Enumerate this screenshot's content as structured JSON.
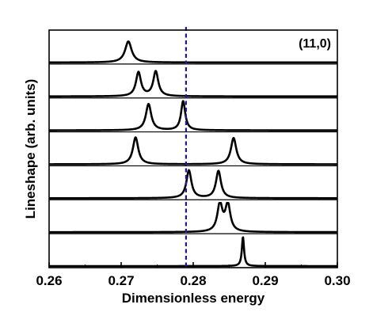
{
  "chart_data": {
    "type": "line",
    "title": "",
    "annotation": "(11,0)",
    "xlabel": "Dimensionless energy",
    "ylabel": "Lineshape (arb. units)",
    "xlim": [
      0.26,
      0.3
    ],
    "xticks": [
      "0.26",
      "0.27",
      "0.28",
      "0.29",
      "0.30"
    ],
    "grid": false,
    "reference_line": {
      "x": 0.279,
      "style": "dashed",
      "color": "#1a1aa6"
    },
    "panel_count": 7,
    "series": [
      {
        "peaks": [
          {
            "center": 0.271,
            "width": 0.00055,
            "amplitude": 0.72
          }
        ]
      },
      {
        "peaks": [
          {
            "center": 0.2724,
            "width": 0.00042,
            "amplitude": 0.82
          },
          {
            "center": 0.2748,
            "width": 0.00042,
            "amplitude": 0.85
          }
        ]
      },
      {
        "peaks": [
          {
            "center": 0.2738,
            "width": 0.00045,
            "amplitude": 0.9
          },
          {
            "center": 0.2786,
            "width": 0.00035,
            "amplitude": 1.0
          }
        ]
      },
      {
        "peaks": [
          {
            "center": 0.272,
            "width": 0.00045,
            "amplitude": 0.92
          },
          {
            "center": 0.2856,
            "width": 0.00045,
            "amplitude": 0.9
          }
        ]
      },
      {
        "peaks": [
          {
            "center": 0.2794,
            "width": 0.00042,
            "amplitude": 0.95
          },
          {
            "center": 0.2835,
            "width": 0.00042,
            "amplitude": 0.93
          }
        ]
      },
      {
        "peaks": [
          {
            "center": 0.2837,
            "width": 0.00042,
            "amplitude": 0.95
          },
          {
            "center": 0.2848,
            "width": 0.00042,
            "amplitude": 0.93
          }
        ]
      },
      {
        "peaks": [
          {
            "center": 0.2869,
            "width": 0.00018,
            "amplitude": 1.0
          }
        ]
      }
    ],
    "colors": {
      "line": "#000000",
      "dashed": "#1a1aa6"
    }
  }
}
